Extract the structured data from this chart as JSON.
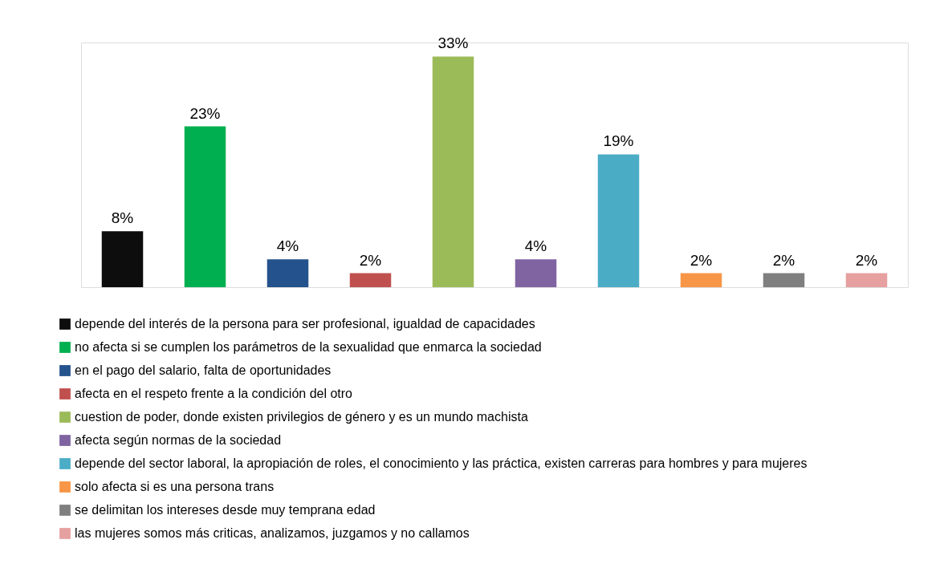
{
  "chart_data": {
    "type": "bar",
    "stacked": true,
    "categories": [
      null,
      null,
      null,
      null,
      null,
      null,
      null,
      null,
      null,
      null
    ],
    "series": [
      {
        "name": "depende del interés de la persona para ser profesional, igualdad de capacidades",
        "color": "#0d0d0d",
        "values": [
          8,
          null,
          null,
          null,
          null,
          null,
          null,
          null,
          null,
          null
        ],
        "value_labels": [
          "8%",
          null,
          null,
          null,
          null,
          null,
          null,
          null,
          null,
          null
        ]
      },
      {
        "name": "no afecta si se cumplen los parámetros de la sexualidad que enmarca la sociedad",
        "color": "#00b050",
        "values": [
          null,
          23,
          null,
          null,
          null,
          null,
          null,
          null,
          null,
          null
        ],
        "value_labels": [
          null,
          "23%",
          null,
          null,
          null,
          null,
          null,
          null,
          null,
          null
        ]
      },
      {
        "name": "en el pago del salario, falta de oportunidades",
        "color": "#24528c",
        "values": [
          null,
          null,
          4,
          null,
          null,
          null,
          null,
          null,
          null,
          null
        ],
        "value_labels": [
          null,
          null,
          "4%",
          null,
          null,
          null,
          null,
          null,
          null,
          null
        ]
      },
      {
        "name": "afecta en el respeto frente a la condición del otro",
        "color": "#c0504d",
        "values": [
          null,
          null,
          null,
          2,
          null,
          null,
          null,
          null,
          null,
          null
        ],
        "value_labels": [
          null,
          null,
          null,
          "2%",
          null,
          null,
          null,
          null,
          null,
          null
        ]
      },
      {
        "name": "cuestion de poder, donde existen privilegios de género y es un mundo machista",
        "color": "#9bbb59",
        "values": [
          null,
          null,
          null,
          null,
          33,
          null,
          null,
          null,
          null,
          null
        ],
        "value_labels": [
          null,
          null,
          null,
          null,
          "33%",
          null,
          null,
          null,
          null,
          null
        ]
      },
      {
        "name": "afecta según normas de la sociedad",
        "color": "#8064a2",
        "values": [
          null,
          null,
          null,
          null,
          null,
          4,
          null,
          null,
          null,
          null
        ],
        "value_labels": [
          null,
          null,
          null,
          null,
          null,
          "4%",
          null,
          null,
          null,
          null
        ]
      },
      {
        "name": "depende del sector laboral, la apropiación de roles, el conocimiento y las práctica, existen carreras para hombres y para mujeres",
        "color": "#4bacc6",
        "values": [
          null,
          null,
          null,
          null,
          null,
          null,
          19,
          null,
          null,
          null
        ],
        "value_labels": [
          null,
          null,
          null,
          null,
          null,
          null,
          "19%",
          null,
          null,
          null
        ]
      },
      {
        "name": "solo afecta si es una persona trans",
        "color": "#f79646",
        "values": [
          null,
          null,
          null,
          null,
          null,
          null,
          null,
          2,
          null,
          null
        ],
        "value_labels": [
          null,
          null,
          null,
          null,
          null,
          null,
          null,
          "2%",
          null,
          null
        ]
      },
      {
        "name": "se delimitan los intereses desde muy temprana edad",
        "color": "#7f7f7f",
        "values": [
          null,
          null,
          null,
          null,
          null,
          null,
          null,
          null,
          2,
          null
        ],
        "value_labels": [
          null,
          null,
          null,
          null,
          null,
          null,
          null,
          null,
          "2%",
          null
        ]
      },
      {
        "name": "las mujeres somos más criticas, analizamos, juzgamos y no callamos",
        "color": "#e6a0a0",
        "values": [
          null,
          null,
          null,
          null,
          null,
          null,
          null,
          null,
          null,
          2
        ],
        "value_labels": [
          null,
          null,
          null,
          null,
          null,
          null,
          null,
          null,
          null,
          "2%"
        ]
      }
    ],
    "legend": "bottom",
    "tick_labels": false
  }
}
